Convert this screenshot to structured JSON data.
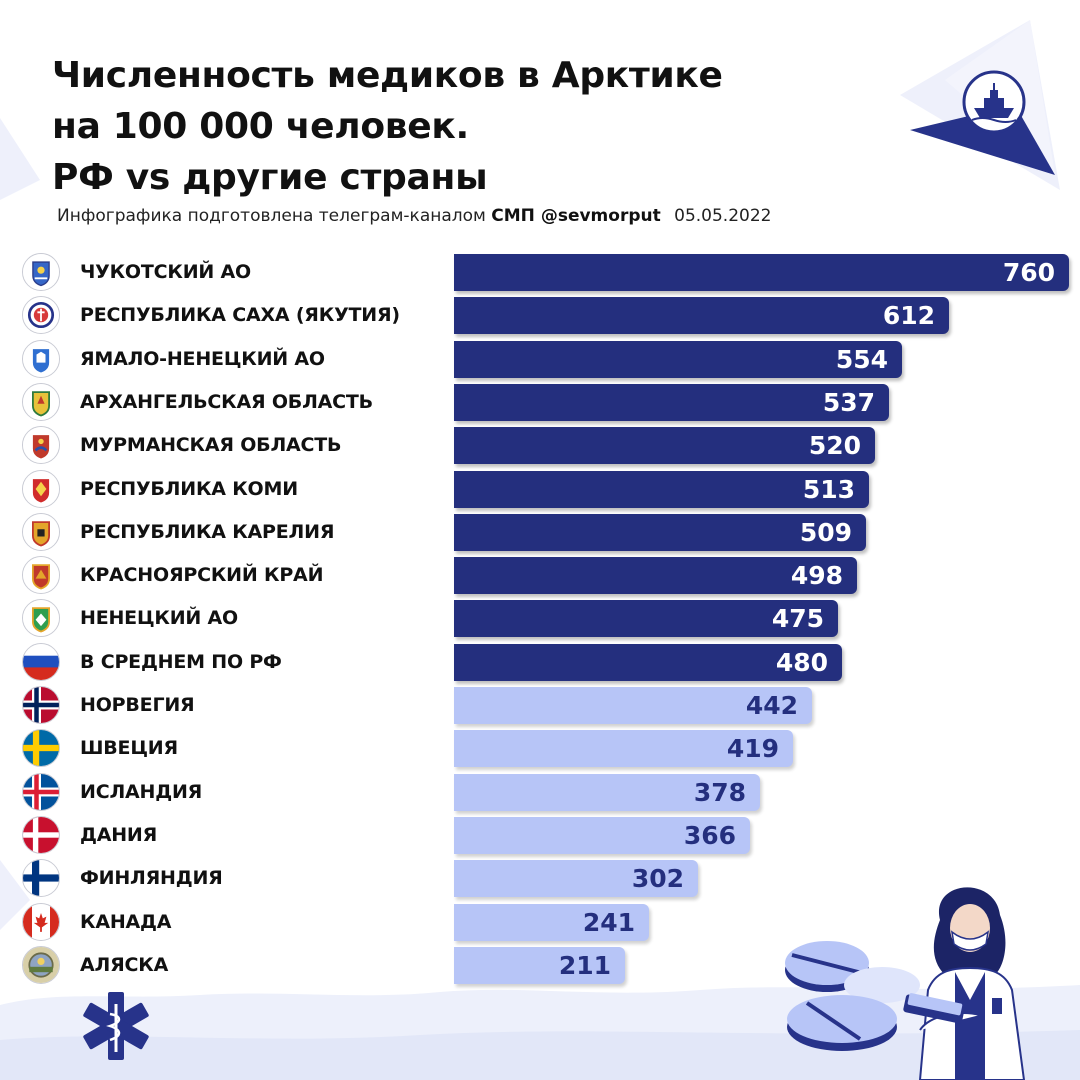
{
  "title_lines": [
    "Численность медиков в Арктике",
    "на 100 000 человек.",
    "РФ vs другие страны"
  ],
  "subtitle": {
    "text": "Инфографика подготовлена телеграм-каналом",
    "channel": "СМП @sevmorput",
    "date": "05.05.2022"
  },
  "colors": {
    "russia_bar": "#242f7e",
    "foreign_bar": "#b7c5f7",
    "accent": "#242f7e"
  },
  "chart_data": {
    "type": "bar",
    "orientation": "horizontal",
    "categories": [
      "ЧУКОТСКИЙ АО",
      "РЕСПУБЛИКА САХА (ЯКУТИЯ)",
      "ЯМАЛО-НЕНЕЦКИЙ АО",
      "АРХАНГЕЛЬСКАЯ ОБЛАСТЬ",
      "МУРМАНСКАЯ ОБЛАСТЬ",
      "РЕСПУБЛИКА КОМИ",
      "РЕСПУБЛИКА КАРЕЛИЯ",
      "КРАСНОЯРСКИЙ КРАЙ",
      "НЕНЕЦКИЙ АО",
      "В СРЕДНЕМ ПО РФ",
      "НОРВЕГИЯ",
      "ШВЕЦИЯ",
      "ИСЛАНДИЯ",
      "ДАНИЯ",
      "ФИНЛЯНДИЯ",
      "КАНАДА",
      "АЛЯСКА"
    ],
    "values": [
      760,
      612,
      554,
      537,
      520,
      513,
      509,
      498,
      475,
      480,
      442,
      419,
      378,
      366,
      302,
      241,
      211
    ],
    "group": [
      "ru",
      "ru",
      "ru",
      "ru",
      "ru",
      "ru",
      "ru",
      "ru",
      "ru",
      "ru",
      "foreign",
      "foreign",
      "foreign",
      "foreign",
      "foreign",
      "foreign",
      "foreign"
    ],
    "emblems": [
      "chukotka-emblem-icon",
      "sakha-emblem-icon",
      "yamal-emblem-icon",
      "arkhangelsk-emblem-icon",
      "murmansk-emblem-icon",
      "komi-emblem-icon",
      "karelia-emblem-icon",
      "krasnoyarsk-emblem-icon",
      "nenets-emblem-icon",
      "russia-flag-icon",
      "norway-flag-icon",
      "sweden-flag-icon",
      "iceland-flag-icon",
      "denmark-flag-icon",
      "finland-flag-icon",
      "canada-flag-icon",
      "alaska-seal-icon"
    ],
    "xlim": [
      0,
      760
    ]
  }
}
